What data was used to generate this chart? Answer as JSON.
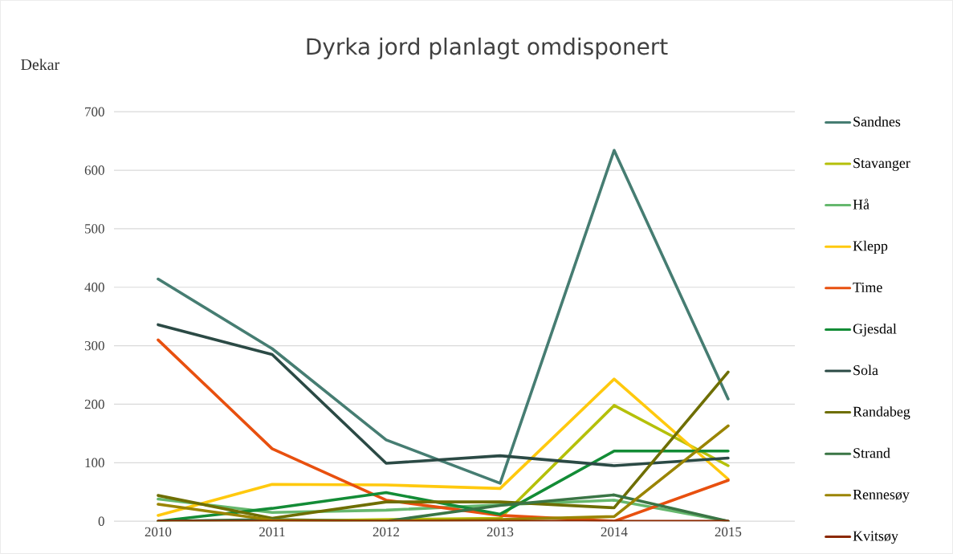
{
  "chart_data": {
    "type": "line",
    "title": "Dyrka jord planlagt omdisponert",
    "ylabel": "Dekar",
    "categories": [
      "2010",
      "2011",
      "2012",
      "2013",
      "2014",
      "2015"
    ],
    "series": [
      {
        "name": "Sandnes",
        "color": "#467d72",
        "values": [
          414,
          295,
          139,
          65,
          634,
          209
        ]
      },
      {
        "name": "Stavanger",
        "color": "#b5c00a",
        "values": [
          0,
          0,
          3,
          5,
          198,
          95
        ]
      },
      {
        "name": "Hå",
        "color": "#66b86e",
        "values": [
          38,
          15,
          19,
          28,
          36,
          0
        ]
      },
      {
        "name": "Klepp",
        "color": "#ffc90e",
        "values": [
          10,
          63,
          62,
          56,
          243,
          72
        ]
      },
      {
        "name": "Time",
        "color": "#e8500f",
        "values": [
          310,
          124,
          36,
          10,
          0,
          70
        ]
      },
      {
        "name": "Gjesdal",
        "color": "#138c36",
        "values": [
          0,
          22,
          49,
          12,
          120,
          120
        ]
      },
      {
        "name": "Sola",
        "color": "#2b4a45",
        "values": [
          336,
          285,
          99,
          112,
          95,
          108
        ]
      },
      {
        "name": "Randabeg",
        "color": "#6e6e00",
        "values": [
          44,
          5,
          33,
          33,
          23,
          255
        ]
      },
      {
        "name": "Strand",
        "color": "#3a7545",
        "values": [
          0,
          3,
          0,
          27,
          45,
          0
        ]
      },
      {
        "name": "Rennesøy",
        "color": "#9a8400",
        "values": [
          29,
          2,
          0,
          3,
          8,
          163
        ]
      },
      {
        "name": "Kvitsøy",
        "color": "#8b2800",
        "values": [
          0,
          0,
          0,
          0,
          0,
          0
        ]
      }
    ],
    "ylim": [
      0,
      700
    ],
    "yticks": [
      0,
      100,
      200,
      300,
      400,
      500,
      600,
      700
    ],
    "grid": "y",
    "legend": "right",
    "marker": "none",
    "line_style": "solid"
  }
}
